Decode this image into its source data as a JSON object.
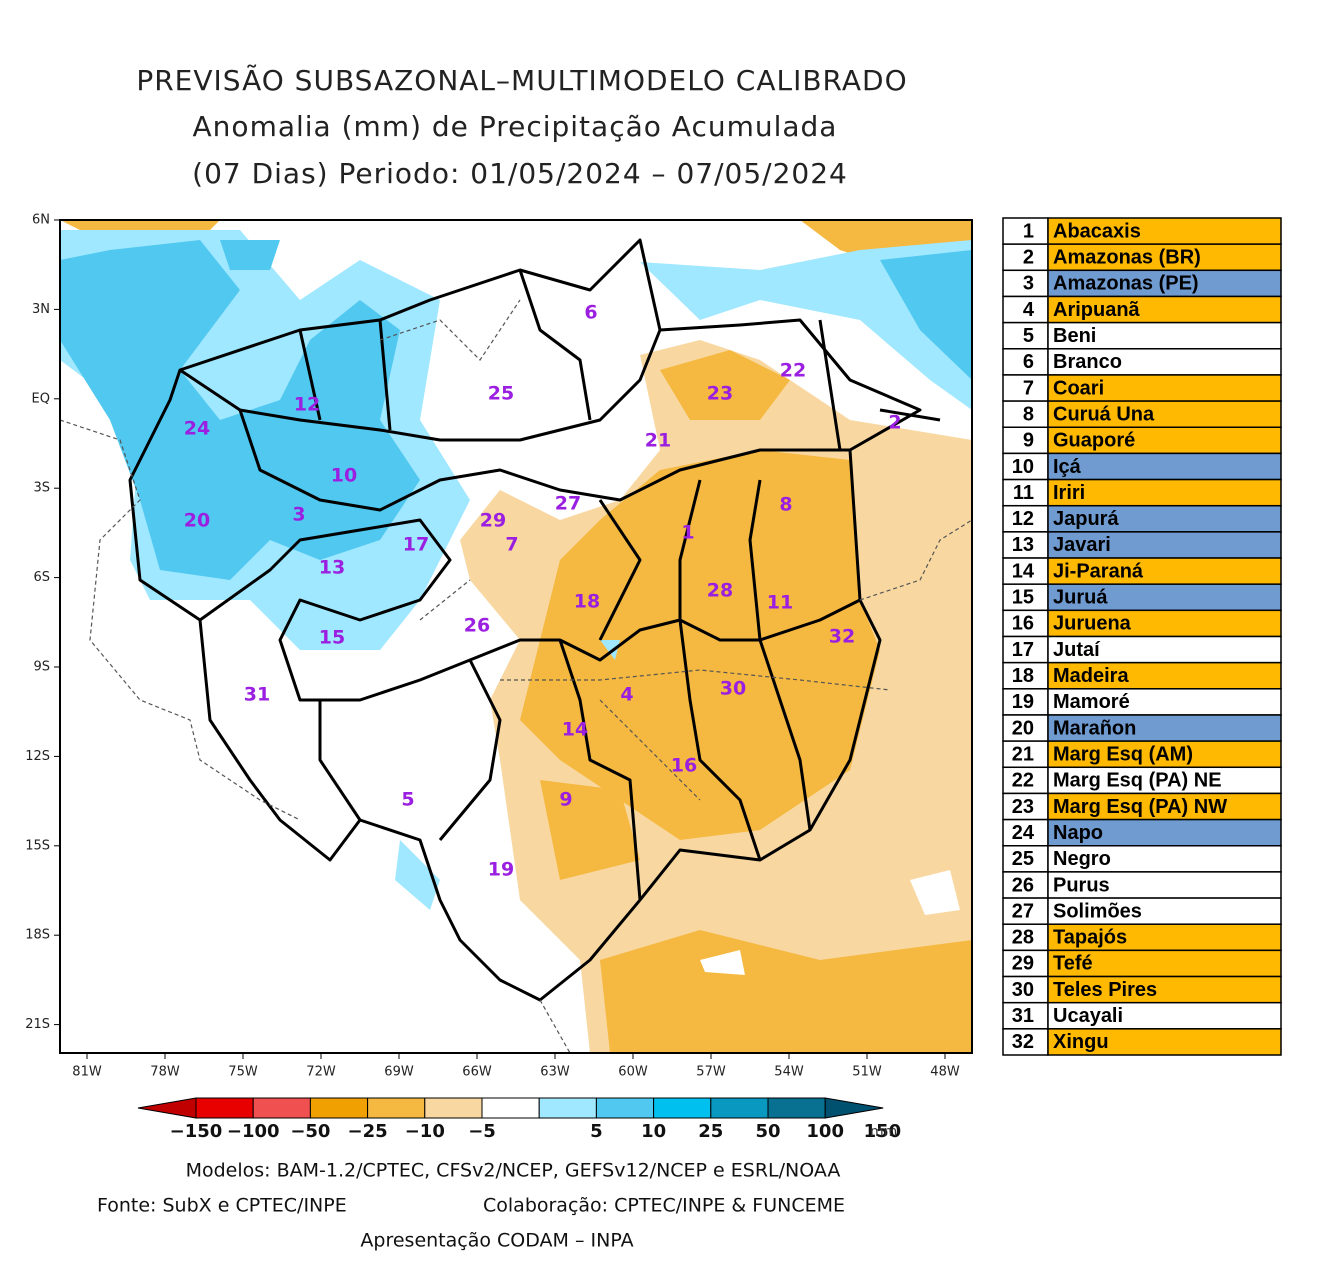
{
  "title": {
    "line1": "PREVISÃO SUBSAZONAL–MULTIMODELO CALIBRADO",
    "line2": "Anomalia (mm) de Precipitação Acumulada",
    "line3": "(07 Dias) Periodo: 01/05/2024 – 07/05/2024"
  },
  "map": {
    "lat_labels": [
      "6N",
      "3N",
      "EQ",
      "3S",
      "6S",
      "9S",
      "12S",
      "15S",
      "18S",
      "21S"
    ],
    "lon_labels": [
      "81W",
      "78W",
      "75W",
      "72W",
      "69W",
      "66W",
      "63W",
      "60W",
      "57W",
      "54W",
      "51W",
      "48W"
    ]
  },
  "colorbar": {
    "colors": [
      "#c00000",
      "#e80000",
      "#f05050",
      "#f0a000",
      "#f5b840",
      "#f8d8a0",
      "#ffffff",
      "#a0e8ff",
      "#50c8f0",
      "#00c0f0",
      "#0898c0",
      "#087090",
      "#005070"
    ],
    "labels": [
      "−150",
      "−100",
      "−50",
      "−25",
      "−10",
      "−5",
      "5",
      "10",
      "25",
      "50",
      "100",
      "150"
    ],
    "unit": "mm"
  },
  "footer": {
    "models": "Modelos: BAM-1.2/CPTEC, CFSv2/NCEP, GEFSv12/NCEP e ESRL/NOAA",
    "source": "Fonte: SubX e CPTEC/INPE",
    "collab": "Colaboração: CPTEC/INPE & FUNCEME",
    "presentation": "Apresentação CODAM – INPA"
  },
  "legend": {
    "colors": {
      "orange": "#ffb900",
      "blue": "#6f9bd1",
      "white": "#ffffff"
    },
    "rows": [
      {
        "number": 1,
        "name": "Abacaxis",
        "color": "orange"
      },
      {
        "number": 2,
        "name": "Amazonas (BR)",
        "color": "orange"
      },
      {
        "number": 3,
        "name": "Amazonas (PE)",
        "color": "blue"
      },
      {
        "number": 4,
        "name": "Aripuanã",
        "color": "orange"
      },
      {
        "number": 5,
        "name": "Beni",
        "color": "white"
      },
      {
        "number": 6,
        "name": "Branco",
        "color": "white"
      },
      {
        "number": 7,
        "name": "Coari",
        "color": "orange"
      },
      {
        "number": 8,
        "name": "Curuá Una",
        "color": "orange"
      },
      {
        "number": 9,
        "name": "Guaporé",
        "color": "orange"
      },
      {
        "number": 10,
        "name": "Içá",
        "color": "blue"
      },
      {
        "number": 11,
        "name": "Iriri",
        "color": "orange"
      },
      {
        "number": 12,
        "name": "Japurá",
        "color": "blue"
      },
      {
        "number": 13,
        "name": "Javari",
        "color": "blue"
      },
      {
        "number": 14,
        "name": "Ji-Paraná",
        "color": "orange"
      },
      {
        "number": 15,
        "name": "Juruá",
        "color": "blue"
      },
      {
        "number": 16,
        "name": "Juruena",
        "color": "orange"
      },
      {
        "number": 17,
        "name": "Jutaí",
        "color": "white"
      },
      {
        "number": 18,
        "name": "Madeira",
        "color": "orange"
      },
      {
        "number": 19,
        "name": "Mamoré",
        "color": "white"
      },
      {
        "number": 20,
        "name": "Marañon",
        "color": "blue"
      },
      {
        "number": 21,
        "name": "Marg Esq (AM)",
        "color": "orange"
      },
      {
        "number": 22,
        "name": "Marg Esq (PA) NE",
        "color": "white"
      },
      {
        "number": 23,
        "name": "Marg Esq (PA) NW",
        "color": "orange"
      },
      {
        "number": 24,
        "name": "Napo",
        "color": "blue"
      },
      {
        "number": 25,
        "name": "Negro",
        "color": "white"
      },
      {
        "number": 26,
        "name": "Purus",
        "color": "white"
      },
      {
        "number": 27,
        "name": "Solimões",
        "color": "white"
      },
      {
        "number": 28,
        "name": "Tapajós",
        "color": "orange"
      },
      {
        "number": 29,
        "name": "Tefé",
        "color": "orange"
      },
      {
        "number": 30,
        "name": "Teles Pires",
        "color": "orange"
      },
      {
        "number": 31,
        "name": "Ucayali",
        "color": "white"
      },
      {
        "number": 32,
        "name": "Xingu",
        "color": "orange"
      }
    ]
  }
}
